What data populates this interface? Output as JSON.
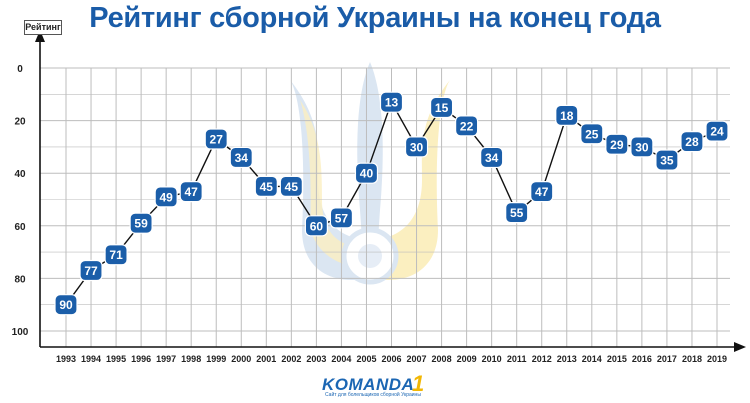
{
  "chart_data": {
    "type": "line",
    "title": "Рейтинг сборной Украины на конец года",
    "ylabel": "Рейтинг",
    "xlabel": "",
    "ylim": [
      0,
      100
    ],
    "y_inverted": true,
    "yticks": [
      0,
      20,
      40,
      60,
      80,
      100
    ],
    "grid": true,
    "categories": [
      "1993",
      "1994",
      "1995",
      "1996",
      "1997",
      "1998",
      "1999",
      "2000",
      "2001",
      "2002",
      "2003",
      "2004",
      "2005",
      "2006",
      "2007",
      "2008",
      "2009",
      "2010",
      "2011",
      "2012",
      "2013",
      "2014",
      "2015",
      "2016",
      "2017",
      "2018",
      "2019"
    ],
    "series": [
      {
        "values": [
          90,
          77,
          71,
          59,
          49,
          47,
          27,
          34,
          45,
          45,
          60,
          57,
          40,
          13,
          30,
          15,
          22,
          34,
          55,
          47,
          18,
          25,
          29,
          30,
          35,
          28,
          24
        ]
      }
    ]
  },
  "colors": {
    "title": "#1a5ca8",
    "marker": "#1b5ea9",
    "line": "#111111",
    "grid": "#bdbdbd",
    "emblem_blue": "#dbe6f2",
    "emblem_yellow": "#fbefc0"
  },
  "logo": {
    "name": "KOMANDA",
    "number": "1",
    "tagline": "Сайт для болельщиков сборной Украины"
  }
}
